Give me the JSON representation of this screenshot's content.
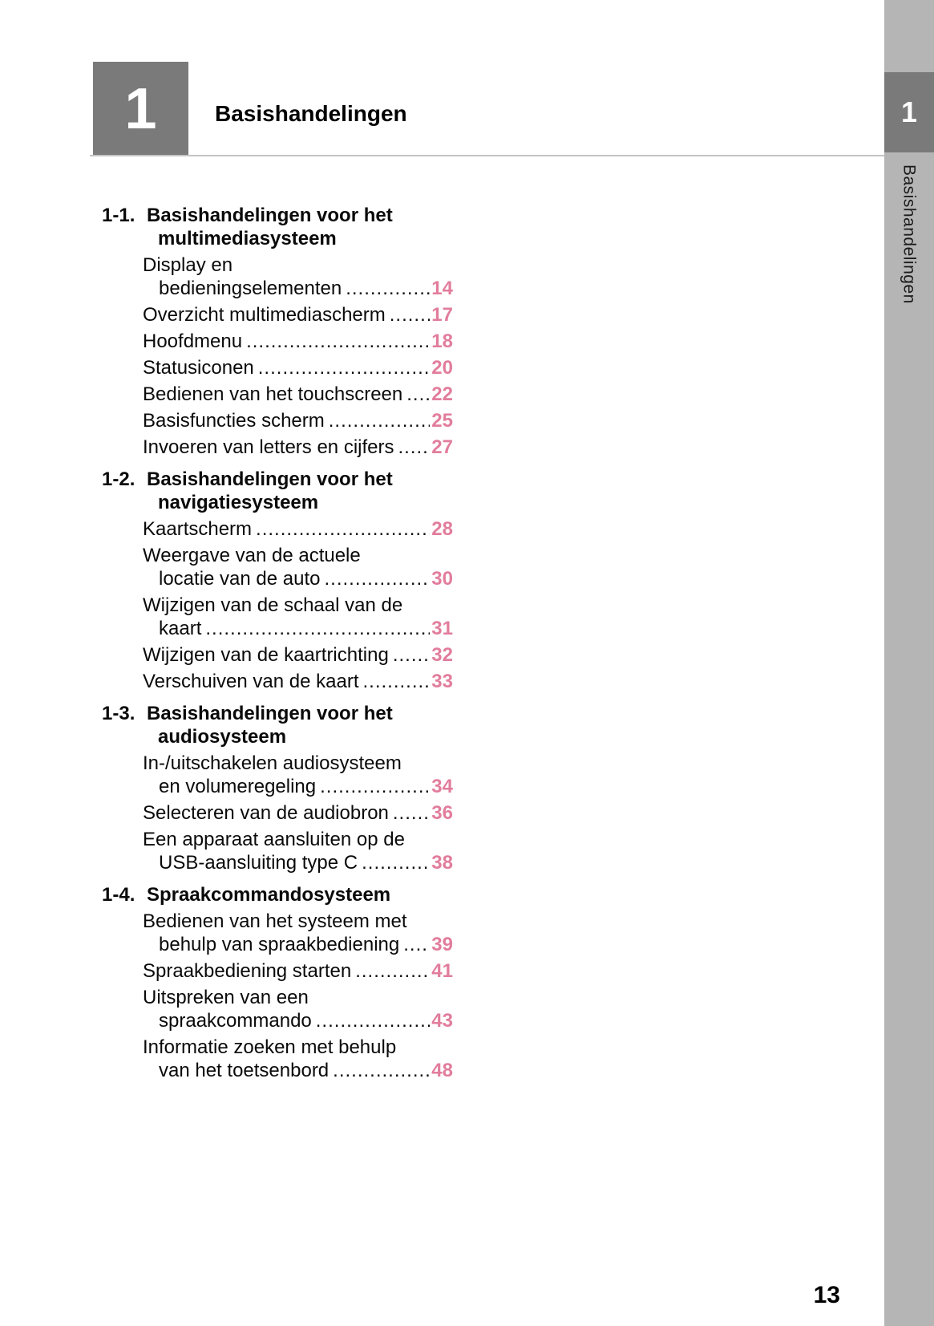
{
  "header": {
    "chapter_number": "1",
    "chapter_title": "Basishandelingen"
  },
  "sidebar": {
    "tab_number": "1",
    "vertical_label": "Basishandelingen"
  },
  "footer": {
    "page_number": "13"
  },
  "colors": {
    "chapter_box_gray": "#7a7a7a",
    "sidebar_strip_gray": "#b5b5b5",
    "sidebar_tab_gray": "#7a7a7a",
    "page_number_pink": "#e27d9c",
    "rule_gray": "#c4c4c4"
  },
  "toc": {
    "sections": [
      {
        "number": "1-1.",
        "title_lines": [
          "Basishandelingen voor het",
          "multimediasysteem"
        ],
        "entries": [
          {
            "lines": [
              "Display en",
              "bedieningselementen"
            ],
            "page": "14"
          },
          {
            "lines": [
              "Overzicht multimediascherm"
            ],
            "page": "17"
          },
          {
            "lines": [
              "Hoofdmenu"
            ],
            "page": "18"
          },
          {
            "lines": [
              "Statusiconen"
            ],
            "page": "20"
          },
          {
            "lines": [
              "Bedienen van het touchscreen"
            ],
            "page": "22"
          },
          {
            "lines": [
              "Basisfuncties scherm"
            ],
            "page": "25"
          },
          {
            "lines": [
              "Invoeren van letters en cijfers"
            ],
            "page": "27"
          }
        ]
      },
      {
        "number": "1-2.",
        "title_lines": [
          "Basishandelingen voor het",
          "navigatiesysteem"
        ],
        "entries": [
          {
            "lines": [
              "Kaartscherm"
            ],
            "page": "28"
          },
          {
            "lines": [
              "Weergave van de actuele",
              "locatie van de auto"
            ],
            "page": "30"
          },
          {
            "lines": [
              "Wijzigen van de schaal van de",
              "kaart"
            ],
            "page": "31"
          },
          {
            "lines": [
              "Wijzigen van de kaartrichting"
            ],
            "page": "32"
          },
          {
            "lines": [
              "Verschuiven van de kaart"
            ],
            "page": "33"
          }
        ]
      },
      {
        "number": "1-3.",
        "title_lines": [
          "Basishandelingen voor het",
          "audiosysteem"
        ],
        "entries": [
          {
            "lines": [
              "In-/uitschakelen audiosysteem",
              "en volumeregeling"
            ],
            "page": "34"
          },
          {
            "lines": [
              "Selecteren van de audiobron"
            ],
            "page": "36"
          },
          {
            "lines": [
              "Een apparaat aansluiten op de",
              "USB-aansluiting type C"
            ],
            "page": "38"
          }
        ]
      },
      {
        "number": "1-4.",
        "title_lines": [
          "Spraakcommandosysteem"
        ],
        "entries": [
          {
            "lines": [
              "Bedienen van het systeem met",
              "behulp van spraakbediening"
            ],
            "page": "39"
          },
          {
            "lines": [
              "Spraakbediening starten"
            ],
            "page": "41"
          },
          {
            "lines": [
              "Uitspreken van een",
              "spraakcommando"
            ],
            "page": "43"
          },
          {
            "lines": [
              "Informatie zoeken met behulp",
              "van het toetsenbord"
            ],
            "page": "48"
          }
        ]
      }
    ]
  }
}
